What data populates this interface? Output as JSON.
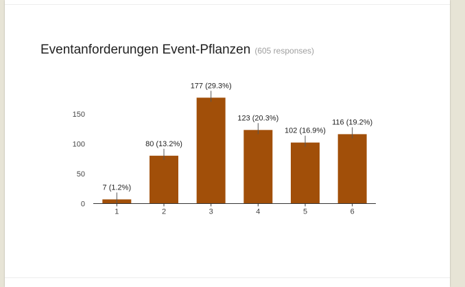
{
  "question": {
    "title": "Eventanforderungen Event-Pflanzen",
    "responses": "(605 responses)"
  },
  "colors": {
    "bar": "#a14f09",
    "axis": "#333333",
    "leader": "#555555"
  },
  "chart_data": {
    "type": "bar",
    "categories": [
      "1",
      "2",
      "3",
      "4",
      "5",
      "6"
    ],
    "values": [
      7,
      80,
      177,
      123,
      102,
      116
    ],
    "data_labels": [
      "7 (1.2%)",
      "80 (13.2%)",
      "177 (29.3%)",
      "123 (20.3%)",
      "102 (16.9%)",
      "116 (19.2%)"
    ],
    "y_ticks": [
      0,
      50,
      100,
      150
    ],
    "ylim": [
      0,
      175
    ],
    "title": "Eventanforderungen Event-Pflanzen",
    "xlabel": "",
    "ylabel": "",
    "grid": false,
    "legend": "none"
  }
}
